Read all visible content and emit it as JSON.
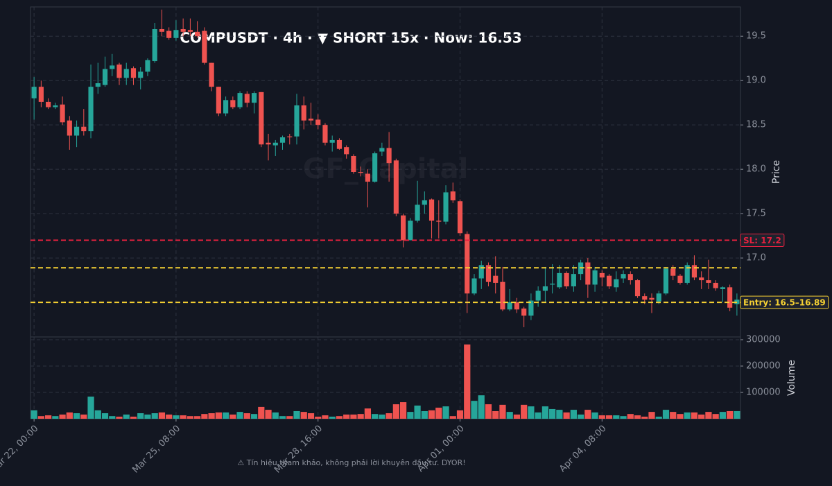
{
  "chart_data": {
    "type": "candlestick",
    "title": "COMPUSDT · 4h · ▼ SHORT 15x · Now: 16.53",
    "watermark": "GF_Capital",
    "footer": "⚠ Tín hiệu tham khảo, không phải lời khuyên đầu tư. DYOR!",
    "ylabel": "Price",
    "colors": {
      "up": "#26a69a",
      "down": "#ef5350"
    },
    "x": [
      "Mar 22, 00:00",
      "Mar 22, 04:00",
      "Mar 22, 08:00",
      "Mar 22, 12:00",
      "Mar 22, 16:00",
      "Mar 22, 20:00",
      "Mar 23, 00:00",
      "Mar 23, 04:00",
      "Mar 23, 08:00",
      "Mar 23, 12:00",
      "Mar 23, 16:00",
      "Mar 23, 20:00",
      "Mar 24, 00:00",
      "Mar 24, 04:00",
      "Mar 24, 08:00",
      "Mar 24, 12:00",
      "Mar 24, 16:00",
      "Mar 24, 20:00",
      "Mar 25, 00:00",
      "Mar 25, 04:00",
      "Mar 25, 08:00",
      "Mar 25, 12:00",
      "Mar 25, 16:00",
      "Mar 25, 20:00",
      "Mar 26, 00:00",
      "Mar 26, 04:00",
      "Mar 26, 08:00",
      "Mar 26, 12:00",
      "Mar 26, 16:00",
      "Mar 26, 20:00",
      "Mar 27, 00:00",
      "Mar 27, 04:00",
      "Mar 27, 08:00",
      "Mar 27, 12:00",
      "Mar 27, 16:00",
      "Mar 27, 20:00",
      "Mar 28, 00:00",
      "Mar 28, 04:00",
      "Mar 28, 08:00",
      "Mar 28, 12:00",
      "Mar 28, 16:00",
      "Mar 28, 20:00",
      "Mar 29, 00:00",
      "Mar 29, 04:00",
      "Mar 29, 08:00",
      "Mar 29, 12:00",
      "Mar 29, 16:00",
      "Mar 29, 20:00",
      "Mar 30, 00:00",
      "Mar 30, 04:00",
      "Mar 30, 08:00",
      "Mar 30, 12:00",
      "Mar 30, 16:00",
      "Mar 30, 20:00",
      "Mar 31, 00:00",
      "Mar 31, 04:00",
      "Mar 31, 08:00",
      "Mar 31, 12:00",
      "Mar 31, 16:00",
      "Mar 31, 20:00",
      "Apr 01, 00:00",
      "Apr 01, 04:00",
      "Apr 01, 08:00",
      "Apr 01, 12:00",
      "Apr 01, 16:00",
      "Apr 01, 20:00",
      "Apr 02, 00:00",
      "Apr 02, 04:00",
      "Apr 02, 08:00",
      "Apr 02, 12:00",
      "Apr 02, 16:00",
      "Apr 02, 20:00",
      "Apr 03, 00:00",
      "Apr 03, 04:00",
      "Apr 03, 08:00",
      "Apr 03, 12:00",
      "Apr 03, 16:00",
      "Apr 03, 20:00",
      "Apr 04, 00:00",
      "Apr 04, 04:00",
      "Apr 04, 08:00",
      "Apr 04, 12:00",
      "Apr 04, 16:00",
      "Apr 04, 20:00",
      "Apr 05, 00:00",
      "Apr 05, 04:00",
      "Apr 05, 08:00",
      "Apr 05, 12:00",
      "Apr 05, 16:00",
      "Apr 05, 20:00",
      "Apr 06, 00:00",
      "Apr 06, 04:00",
      "Apr 06, 08:00",
      "Apr 06, 12:00",
      "Apr 06, 16:00",
      "Apr 06, 20:00",
      "Apr 07, 00:00",
      "Apr 07, 04:00",
      "Apr 07, 08:00",
      "Apr 07, 12:00"
    ],
    "xticks": [
      "Mar 22, 00:00",
      "Mar 25, 08:00",
      "Mar 28, 16:00",
      "Apr 01, 00:00",
      "Apr 04, 08:00"
    ],
    "open": [
      18.8,
      18.93,
      18.76,
      18.7,
      18.73,
      18.55,
      18.38,
      18.48,
      18.43,
      18.93,
      18.95,
      19.13,
      19.18,
      19.03,
      19.14,
      19.03,
      19.1,
      19.22,
      19.58,
      19.56,
      19.48,
      19.58,
      19.57,
      19.55,
      19.56,
      19.2,
      18.93,
      18.63,
      18.78,
      18.7,
      18.85,
      18.75,
      18.87,
      18.3,
      18.27,
      18.3,
      18.37,
      18.37,
      18.72,
      18.57,
      18.56,
      18.5,
      18.3,
      18.33,
      18.25,
      18.15,
      17.97,
      17.95,
      17.86,
      18.2,
      18.24,
      18.1,
      17.48,
      17.2,
      17.42,
      17.6,
      17.66,
      17.42,
      17.41,
      17.75,
      17.64,
      17.27,
      16.6,
      16.77,
      16.92,
      16.8,
      16.73,
      16.42,
      16.5,
      16.43,
      16.35,
      16.52,
      16.63,
      16.7,
      16.67,
      16.83,
      16.68,
      16.82,
      16.95,
      16.7,
      16.83,
      16.8,
      16.67,
      16.77,
      16.82,
      16.75,
      16.57,
      16.55,
      16.51,
      16.6,
      16.88,
      16.8,
      16.72,
      16.92,
      16.78,
      16.75,
      16.72,
      16.65,
      16.67,
      16.48
    ],
    "high": [
      19.04,
      19.0,
      18.8,
      18.75,
      18.82,
      18.6,
      18.55,
      18.68,
      19.18,
      19.2,
      19.27,
      19.3,
      19.2,
      19.2,
      19.16,
      19.15,
      19.25,
      19.65,
      19.8,
      19.6,
      19.68,
      19.7,
      19.7,
      19.67,
      19.6,
      19.2,
      18.93,
      18.82,
      18.82,
      18.88,
      18.88,
      18.88,
      18.87,
      18.4,
      18.33,
      18.38,
      18.4,
      18.85,
      18.82,
      18.75,
      18.62,
      18.52,
      18.38,
      18.35,
      18.27,
      18.17,
      18.03,
      18.0,
      18.2,
      18.3,
      18.42,
      18.12,
      17.5,
      17.45,
      17.87,
      17.75,
      17.67,
      17.65,
      17.82,
      17.85,
      17.66,
      17.3,
      16.82,
      16.97,
      16.95,
      17.02,
      16.9,
      16.65,
      16.55,
      16.45,
      16.6,
      16.68,
      16.9,
      16.93,
      16.92,
      16.85,
      16.92,
      16.98,
      17.0,
      16.9,
      16.86,
      16.82,
      16.85,
      16.86,
      16.85,
      16.76,
      16.6,
      16.6,
      16.63,
      16.9,
      16.92,
      16.82,
      16.95,
      17.03,
      16.85,
      16.98,
      16.75,
      16.68,
      16.7,
      16.6
    ],
    "low": [
      18.56,
      18.7,
      18.68,
      18.68,
      18.5,
      18.22,
      18.25,
      18.38,
      18.35,
      18.85,
      18.93,
      19.05,
      18.95,
      18.95,
      18.95,
      18.9,
      19.05,
      19.2,
      19.5,
      19.46,
      19.45,
      19.5,
      19.5,
      19.48,
      19.18,
      18.88,
      18.6,
      18.6,
      18.68,
      18.68,
      18.7,
      18.63,
      18.25,
      18.1,
      18.15,
      18.22,
      18.28,
      18.28,
      18.45,
      18.5,
      18.45,
      18.27,
      18.2,
      18.22,
      18.12,
      17.95,
      17.92,
      17.57,
      17.85,
      18.15,
      17.86,
      17.47,
      17.12,
      17.2,
      17.4,
      17.5,
      17.22,
      17.22,
      17.38,
      17.62,
      17.25,
      16.38,
      16.58,
      16.65,
      16.68,
      16.6,
      16.4,
      16.4,
      16.38,
      16.22,
      16.3,
      16.45,
      16.5,
      16.6,
      16.65,
      16.65,
      16.62,
      16.75,
      16.55,
      16.62,
      16.68,
      16.65,
      16.62,
      16.72,
      16.7,
      16.55,
      16.48,
      16.38,
      16.48,
      16.58,
      16.75,
      16.7,
      16.7,
      16.75,
      16.65,
      16.65,
      16.63,
      16.5,
      16.4,
      16.35
    ],
    "close": [
      18.93,
      18.76,
      18.7,
      18.72,
      18.53,
      18.38,
      18.48,
      18.43,
      18.93,
      18.97,
      19.13,
      19.17,
      19.03,
      19.13,
      19.03,
      19.1,
      19.23,
      19.58,
      19.55,
      19.48,
      19.57,
      19.55,
      19.55,
      19.5,
      19.2,
      18.93,
      18.63,
      18.78,
      18.7,
      18.86,
      18.75,
      18.86,
      18.28,
      18.28,
      18.3,
      18.36,
      18.36,
      18.72,
      18.55,
      18.55,
      18.5,
      18.3,
      18.33,
      18.23,
      18.17,
      17.97,
      17.96,
      17.86,
      18.18,
      18.24,
      18.07,
      17.5,
      17.2,
      17.42,
      17.6,
      17.65,
      17.42,
      17.41,
      17.74,
      17.65,
      17.28,
      16.6,
      16.77,
      16.92,
      16.73,
      16.72,
      16.42,
      16.5,
      16.42,
      16.35,
      16.52,
      16.63,
      16.68,
      16.71,
      16.83,
      16.68,
      16.82,
      16.95,
      16.7,
      16.86,
      16.78,
      16.68,
      16.76,
      16.82,
      16.75,
      16.57,
      16.53,
      16.53,
      16.6,
      16.88,
      16.8,
      16.72,
      16.92,
      16.78,
      16.75,
      16.72,
      16.66,
      16.67,
      16.44,
      16.53
    ],
    "ylim": [
      16.11,
      19.83
    ],
    "yticks": [
      {
        "value": 17,
        "label": "17.0"
      },
      17.5,
      {
        "value": 18,
        "label": "18.0"
      },
      18.5,
      {
        "value": 19,
        "label": "19.0"
      },
      19.5
    ],
    "sl": {
      "value": 17.2,
      "label": "SL: 17.2",
      "color": "#e8213f"
    },
    "entry": {
      "values": [
        16.5,
        16.89
      ],
      "label": "Entry: 16.5–16.89",
      "color": "#f5d033"
    },
    "volume": {
      "ylabel": "Volume",
      "ylim": [
        0,
        310500
      ],
      "yticks": [
        100000,
        200000,
        300000
      ],
      "values": [
        32000,
        10000,
        13000,
        10000,
        16000,
        24000,
        21000,
        16000,
        84000,
        32000,
        21000,
        10000,
        8000,
        16000,
        8000,
        21000,
        16000,
        21000,
        24000,
        16000,
        13000,
        13000,
        10000,
        10000,
        18000,
        21000,
        24000,
        24000,
        16000,
        26000,
        21000,
        18000,
        45000,
        34000,
        24000,
        10000,
        10000,
        29000,
        26000,
        21000,
        8000,
        13000,
        8000,
        10000,
        16000,
        16000,
        18000,
        39000,
        18000,
        16000,
        21000,
        55000,
        63000,
        26000,
        50000,
        29000,
        32000,
        42000,
        47000,
        10000,
        32000,
        282000,
        68000,
        89000,
        55000,
        29000,
        53000,
        26000,
        16000,
        53000,
        47000,
        24000,
        47000,
        37000,
        34000,
        24000,
        34000,
        16000,
        34000,
        24000,
        13000,
        13000,
        13000,
        10000,
        18000,
        13000,
        8000,
        26000,
        8000,
        34000,
        26000,
        18000,
        24000,
        24000,
        16000,
        26000,
        18000,
        26000,
        29000,
        29000
      ]
    }
  }
}
